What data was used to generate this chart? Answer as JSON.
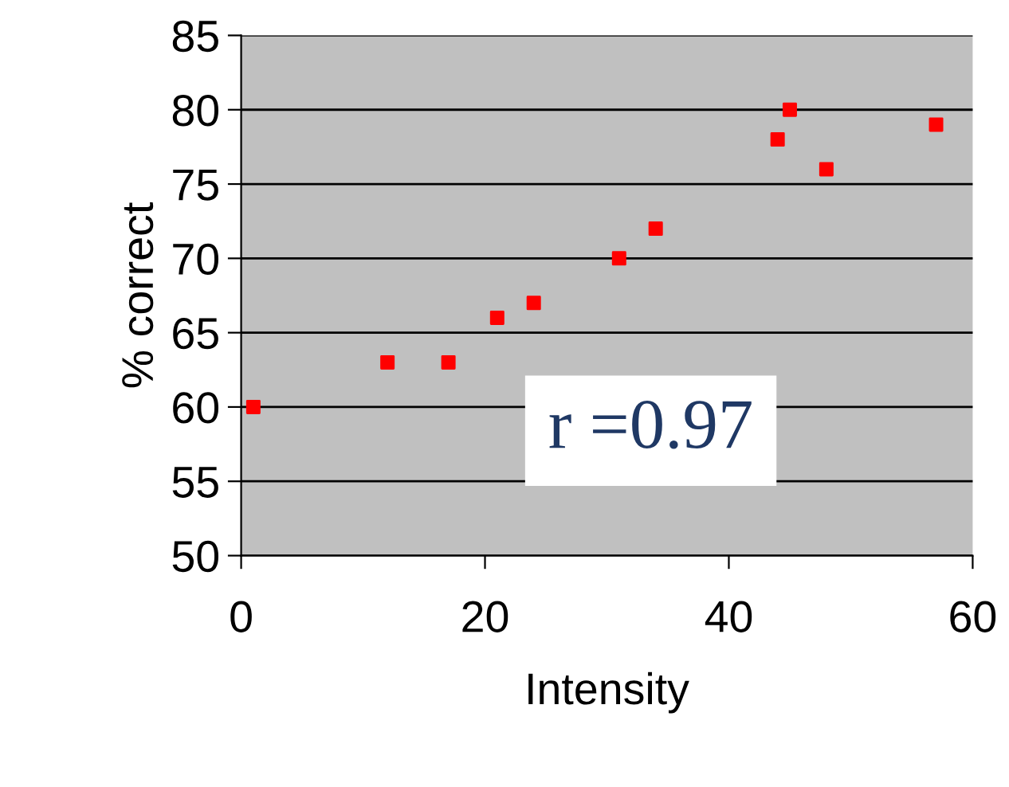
{
  "chart_data": {
    "type": "scatter",
    "xlabel": "Intensity",
    "ylabel": "% correct",
    "x": [
      1,
      12,
      17,
      21,
      24,
      31,
      34,
      44,
      45,
      48,
      57
    ],
    "series": [
      {
        "color": "#ff0000",
        "values": [
          60,
          63,
          63,
          66,
          67,
          70,
          72,
          78,
          80,
          76,
          79
        ]
      }
    ],
    "xlim": [
      0,
      60
    ],
    "xticks": [
      0,
      20,
      40,
      60
    ],
    "ylim": [
      50,
      85
    ],
    "yticks": [
      50,
      55,
      60,
      65,
      70,
      75,
      80,
      85
    ],
    "grid": "y",
    "marker": "square",
    "legend": false,
    "annotations": [
      "r =0.97"
    ]
  }
}
